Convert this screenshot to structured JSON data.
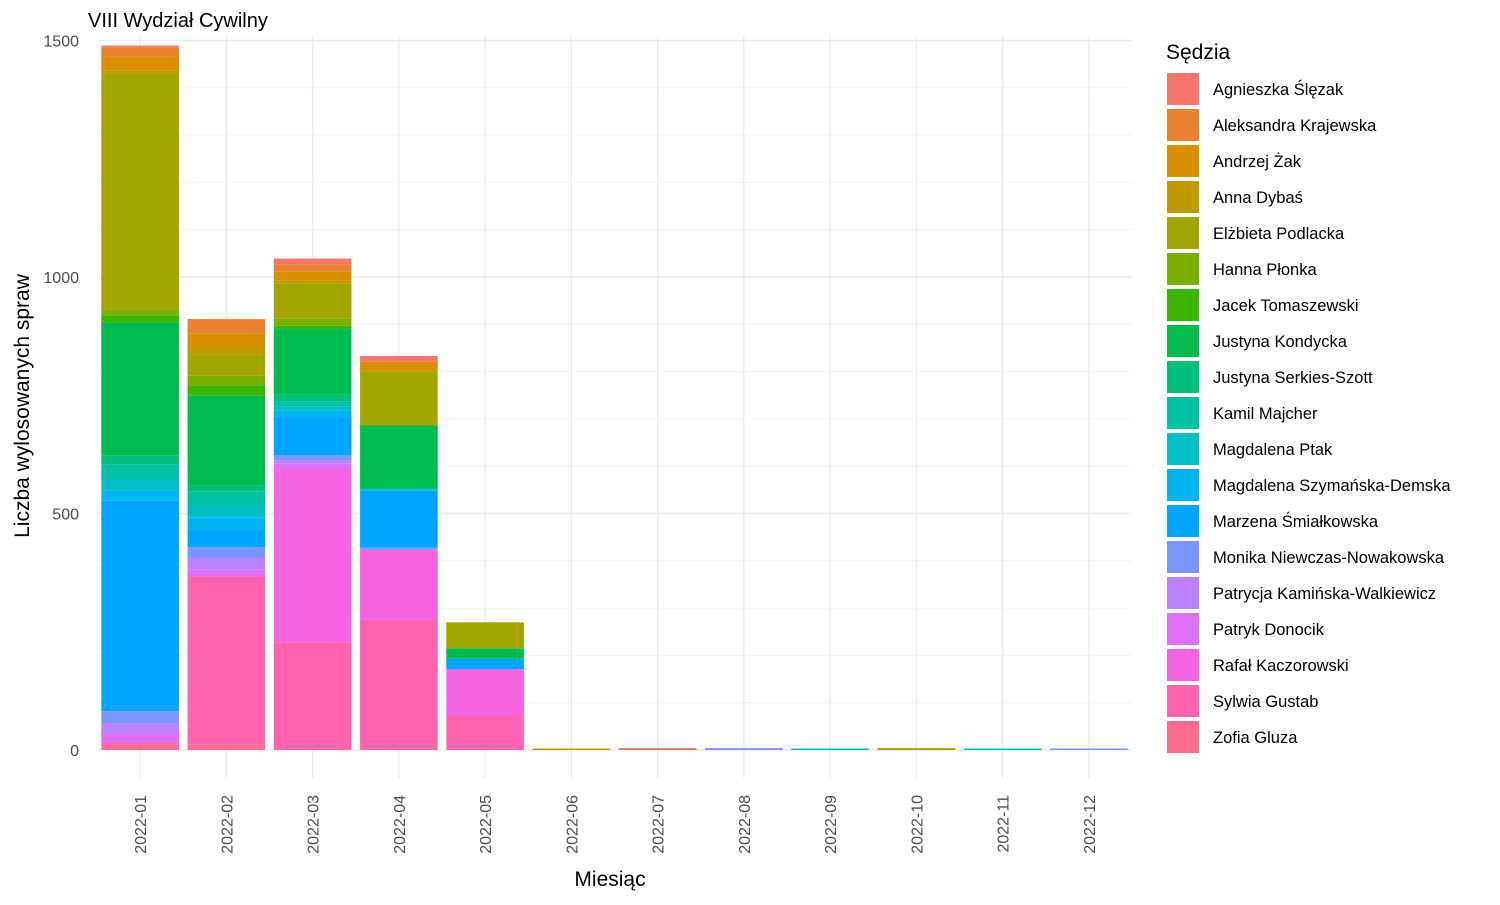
{
  "chart_data": {
    "type": "bar",
    "stacked": true,
    "title": "VIII Wydział Cywilny",
    "xlabel": "Miesiąc",
    "ylabel": "Liczba wylosowanych spraw",
    "ylim": [
      -60,
      1500
    ],
    "yticks": [
      0,
      500,
      1000,
      1500
    ],
    "grid": true,
    "legend_title": "Sędzia",
    "legend_position": "right",
    "categories": [
      "2022-01",
      "2022-02",
      "2022-03",
      "2022-04",
      "2022-05",
      "2022-06",
      "2022-07",
      "2022-08",
      "2022-09",
      "2022-10",
      "2022-11",
      "2022-12"
    ],
    "series": [
      {
        "name": "Agnieszka Ślęzak",
        "color": "#F8766D",
        "values": [
          2,
          0,
          12,
          12,
          0,
          0,
          0,
          0,
          0,
          0,
          0,
          0
        ]
      },
      {
        "name": "Aleksandra Krajewska",
        "color": "#EA8331",
        "values": [
          20,
          30,
          15,
          0,
          0,
          0,
          1,
          0,
          0,
          0,
          0,
          0
        ]
      },
      {
        "name": "Andrzej Żak",
        "color": "#D89000",
        "values": [
          30,
          30,
          20,
          20,
          0,
          0,
          0,
          0,
          0,
          0,
          0,
          0
        ]
      },
      {
        "name": "Anna Dybaś",
        "color": "#C09B00",
        "values": [
          5,
          15,
          5,
          0,
          0,
          1,
          0,
          0,
          0,
          1,
          0,
          0
        ]
      },
      {
        "name": "Elżbieta Podlacka",
        "color": "#A3A500",
        "values": [
          500,
          45,
          75,
          115,
          55,
          0,
          0,
          0,
          0,
          1,
          0,
          0
        ]
      },
      {
        "name": "Hanna Płonka",
        "color": "#7CAE00",
        "values": [
          12,
          20,
          15,
          0,
          0,
          0,
          0,
          0,
          0,
          0,
          0,
          0
        ]
      },
      {
        "name": "Jacek Tomaszewski",
        "color": "#39B600",
        "values": [
          16,
          22,
          6,
          0,
          0,
          0,
          0,
          0,
          0,
          0,
          0,
          0
        ]
      },
      {
        "name": "Justyna Kondycka",
        "color": "#00BB4E",
        "values": [
          280,
          190,
          140,
          132,
          22,
          0,
          0,
          0,
          0,
          0,
          0,
          0
        ]
      },
      {
        "name": "Justyna Serkies-Szott",
        "color": "#00BF7D",
        "values": [
          20,
          12,
          14,
          3,
          0,
          0,
          0,
          0,
          0,
          0,
          0,
          0
        ]
      },
      {
        "name": "Kamil Majcher",
        "color": "#00C1A3",
        "values": [
          30,
          30,
          10,
          0,
          0,
          0,
          0,
          0,
          0,
          0,
          0,
          0
        ]
      },
      {
        "name": "Magdalena Ptak",
        "color": "#00BFC4",
        "values": [
          24,
          25,
          10,
          0,
          0,
          0,
          0,
          0,
          1,
          0,
          1,
          0
        ]
      },
      {
        "name": "Magdalena Szymańska-Demska",
        "color": "#00B4EF",
        "values": [
          22,
          25,
          14,
          3,
          0,
          0,
          0,
          0,
          0,
          0,
          0,
          0
        ]
      },
      {
        "name": "Marzena Śmiałkowska",
        "color": "#00A5FF",
        "values": [
          445,
          38,
          80,
          120,
          22,
          0,
          0,
          0,
          0,
          0,
          0,
          0
        ]
      },
      {
        "name": "Monika Niewczas-Nowakowska",
        "color": "#7997FF",
        "values": [
          25,
          22,
          10,
          5,
          0,
          0,
          1,
          1,
          0,
          0,
          0,
          1
        ]
      },
      {
        "name": "Patrycja Kamińska-Walkiewicz",
        "color": "#BB83FF",
        "values": [
          22,
          25,
          8,
          0,
          0,
          0,
          0,
          1,
          0,
          0,
          0,
          0
        ]
      },
      {
        "name": "Patryk Donocik",
        "color": "#DF70F8",
        "values": [
          18,
          15,
          12,
          0,
          0,
          0,
          0,
          0,
          0,
          0,
          0,
          0
        ]
      },
      {
        "name": "Rafał Kaczorowski",
        "color": "#F564E3",
        "values": [
          2,
          0,
          365,
          148,
          98,
          0,
          0,
          0,
          0,
          0,
          0,
          0
        ]
      },
      {
        "name": "Sylwia Gustab",
        "color": "#FF64B0",
        "values": [
          3,
          355,
          225,
          272,
          73,
          0,
          0,
          0,
          0,
          0,
          0,
          0
        ]
      },
      {
        "name": "Zofia Gluza",
        "color": "#FF6C91",
        "values": [
          12,
          12,
          3,
          3,
          0,
          0,
          0,
          0,
          0,
          0,
          0,
          0
        ]
      }
    ]
  }
}
